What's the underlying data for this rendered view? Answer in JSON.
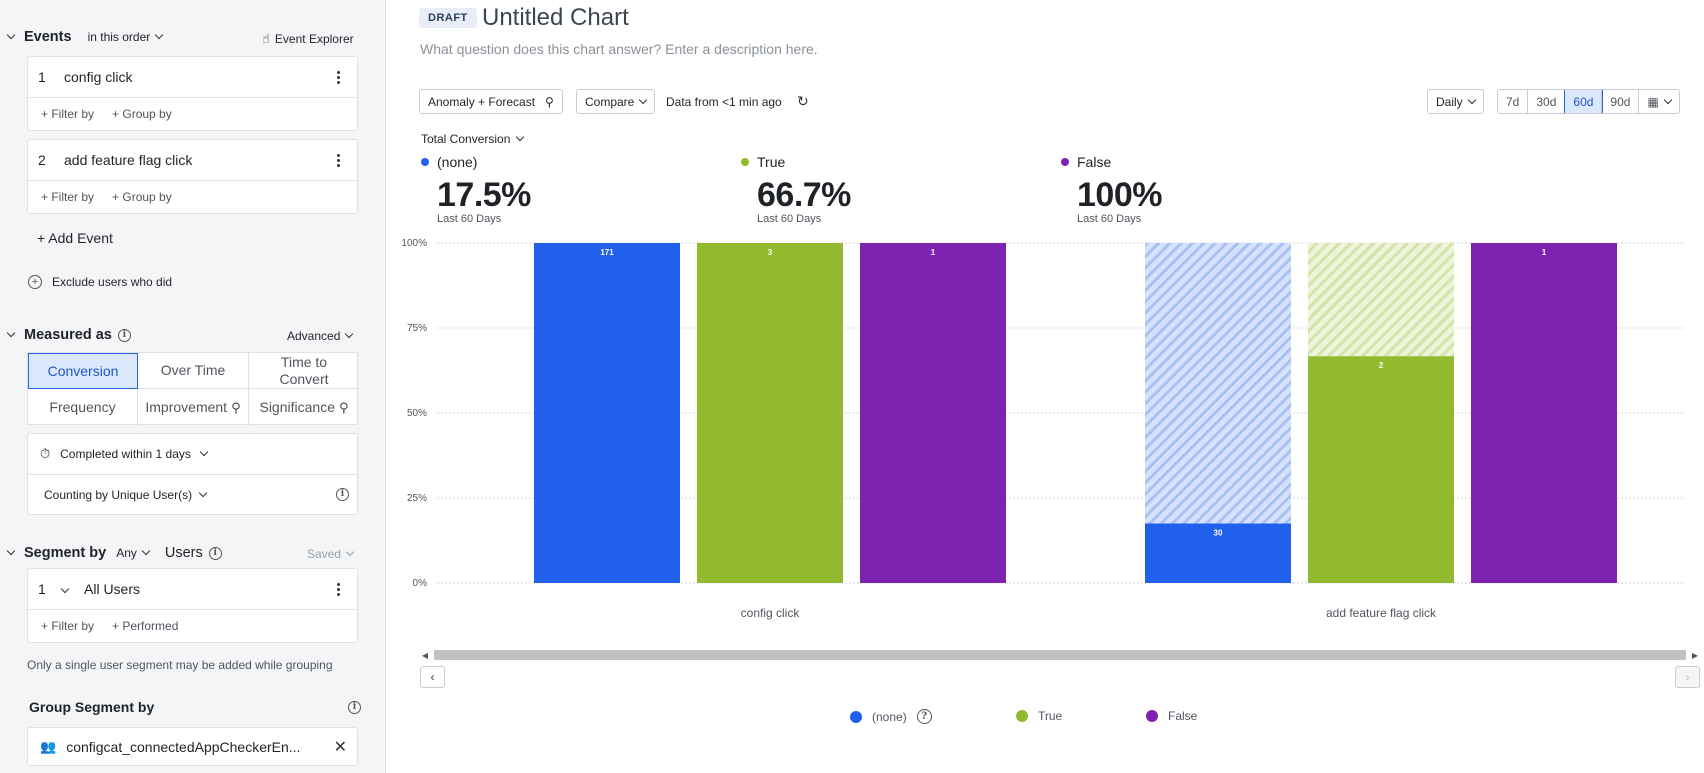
{
  "sidebar": {
    "events": {
      "title": "Events",
      "order_label": "in this order",
      "explorer_label": "Event Explorer",
      "items": [
        {
          "num": "1",
          "name": "config click",
          "filter": "+ Filter by",
          "group": "+ Group by"
        },
        {
          "num": "2",
          "name": "add feature flag click",
          "filter": "+ Filter by",
          "group": "+ Group by"
        }
      ],
      "add_label": "+ Add Event",
      "exclude_label": "Exclude users who did"
    },
    "measured": {
      "title": "Measured as",
      "advanced_label": "Advanced",
      "options": [
        "Conversion",
        "Over Time",
        "Time to Convert",
        "Frequency",
        "Improvement",
        "Significance"
      ],
      "completed_label": "Completed within 1 days",
      "counting_label": "Counting by Unique User(s)"
    },
    "segment": {
      "title": "Segment by",
      "any_label": "Any",
      "users_label": "Users",
      "saved_label": "Saved",
      "item": {
        "num": "1",
        "name": "All Users",
        "filter": "+ Filter by",
        "performed": "+ Performed"
      },
      "note": "Only a single user segment may be added while grouping"
    },
    "group_segment": {
      "title": "Group Segment by",
      "value": "configcat_connectedAppCheckerEn..."
    }
  },
  "header": {
    "badge": "DRAFT",
    "title": "Untitled Chart",
    "description_placeholder": "What question does this chart answer? Enter a description here."
  },
  "toolbar": {
    "anomaly_label": "Anomaly + Forecast",
    "compare_label": "Compare",
    "data_from": "Data from <1 min ago",
    "interval_label": "Daily",
    "ranges": [
      "7d",
      "30d",
      "60d",
      "90d"
    ],
    "active_range": "60d",
    "total_conversion_label": "Total Conversion"
  },
  "metrics": [
    {
      "name": "(none)",
      "value": "17.5%",
      "period": "Last 60 Days",
      "color": "#2160ec"
    },
    {
      "name": "True",
      "value": "66.7%",
      "period": "Last 60 Days",
      "color": "#92ba2e"
    },
    {
      "name": "False",
      "value": "100%",
      "period": "Last 60 Days",
      "color": "#7e22b2"
    }
  ],
  "chart_data": {
    "type": "bar",
    "categories": [
      "config click",
      "add feature flag click"
    ],
    "ylim": [
      0,
      100
    ],
    "yticks": [
      "0%",
      "25%",
      "50%",
      "75%",
      "100%"
    ],
    "series": [
      {
        "name": "(none)",
        "color": "#2160ec",
        "values": [
          100,
          17.5
        ],
        "labels": [
          "171",
          "30"
        ]
      },
      {
        "name": "True",
        "color": "#92ba2e",
        "values": [
          100,
          66.7
        ],
        "labels": [
          "3",
          "2"
        ]
      },
      {
        "name": "False",
        "color": "#7e22b2",
        "values": [
          100,
          100
        ],
        "labels": [
          "1",
          "1"
        ]
      }
    ],
    "grid": true
  },
  "legend": [
    {
      "name": "(none)",
      "color": "#2160ec"
    },
    {
      "name": "True",
      "color": "#92ba2e"
    },
    {
      "name": "False",
      "color": "#7e22b2"
    }
  ]
}
